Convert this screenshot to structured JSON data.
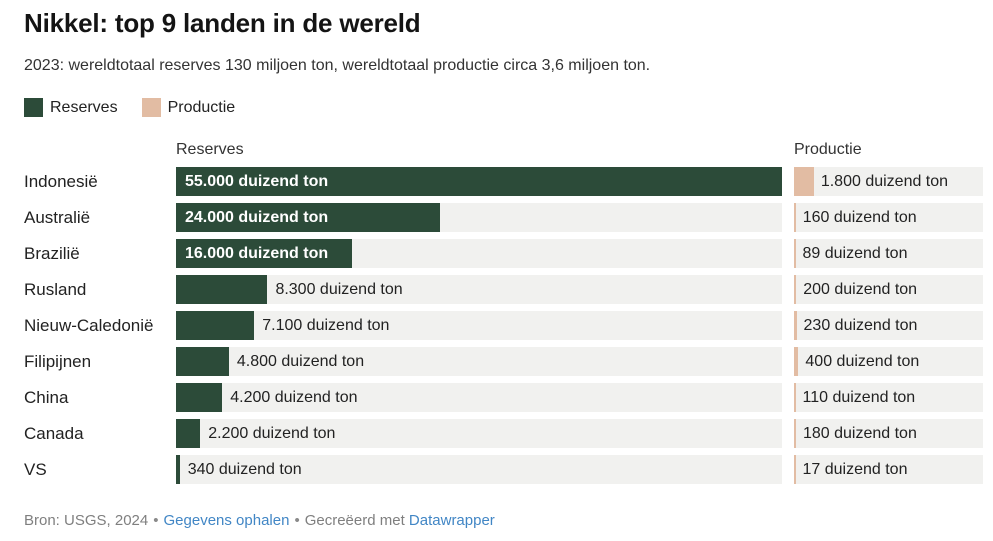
{
  "header": {
    "title": "Nikkel: top 9 landen in de wereld",
    "subtitle": "2023: wereldtotaal reserves 130 miljoen ton, wereldtotaal productie circa 3,6 miljoen ton."
  },
  "legend": [
    {
      "label": "Reserves"
    },
    {
      "label": "Productie"
    }
  ],
  "columns": {
    "reserves_header": "Reserves",
    "productie_header": "Productie"
  },
  "colors": {
    "reserves": "#2c4b39",
    "productie": "#e2bca3",
    "track": "#f1f1ef",
    "link": "#4186c5"
  },
  "footer": {
    "source": "Bron: USGS, 2024",
    "separator": "•",
    "data_link": "Gegevens ophalen",
    "created_with": "Gecreëerd met",
    "tool_link": "Datawrapper"
  },
  "chart_data": {
    "type": "bar",
    "orientation": "horizontal",
    "title": "Nikkel: top 9 landen in de wereld",
    "subtitle": "2023: wereldtotaal reserves 130 miljoen ton, wereldtotaal productie circa 3,6 miljoen ton.",
    "unit": "duizend ton",
    "shared_xlim": [
      0,
      55000
    ],
    "grid": false,
    "legend_position": "top-left",
    "categories": [
      "Indonesië",
      "Australië",
      "Brazilië",
      "Rusland",
      "Nieuw-Caledonië",
      "Filipijnen",
      "China",
      "Canada",
      "VS"
    ],
    "series": [
      {
        "name": "Reserves",
        "values": [
          55000,
          24000,
          16000,
          8300,
          7100,
          4800,
          4200,
          2200,
          340
        ],
        "labels": [
          "55.000 duizend ton",
          "24.000 duizend ton",
          "16.000 duizend ton",
          "8.300 duizend ton",
          "7.100 duizend ton",
          "4.800 duizend ton",
          "4.200 duizend ton",
          "2.200 duizend ton",
          "340 duizend ton"
        ]
      },
      {
        "name": "Productie",
        "values": [
          1800,
          160,
          89,
          200,
          230,
          400,
          110,
          180,
          17
        ],
        "labels": [
          "1.800 duizend ton",
          "160 duizend ton",
          "89 duizend ton",
          "200 duizend ton",
          "230 duizend ton",
          "400 duizend ton",
          "110 duizend ton",
          "180 duizend ton",
          "17 duizend ton"
        ]
      }
    ],
    "source": "USGS, 2024"
  }
}
